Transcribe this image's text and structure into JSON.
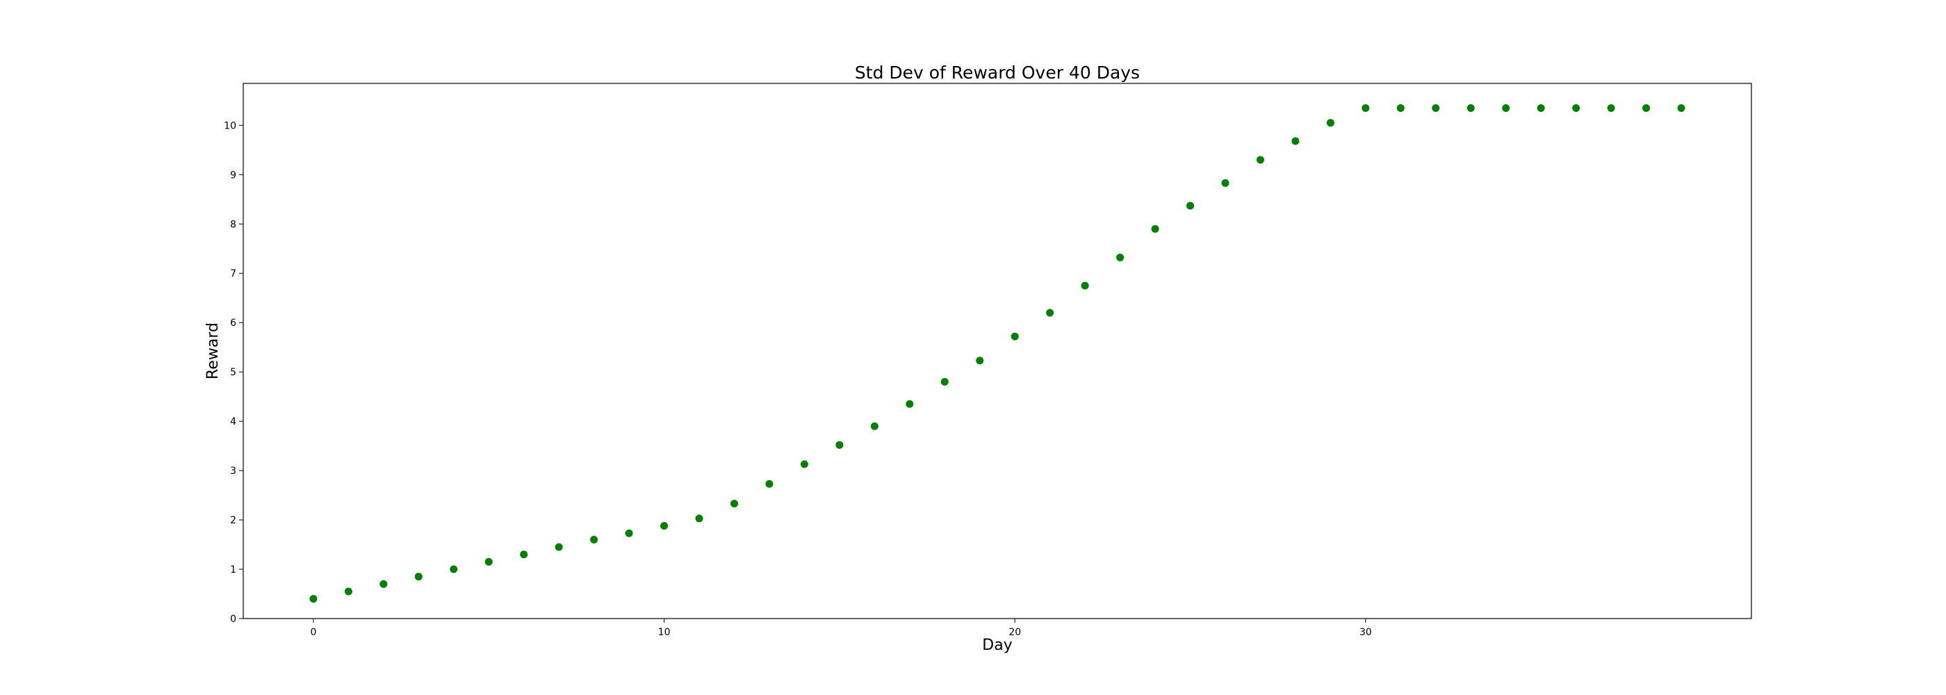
{
  "chart_data": {
    "type": "scatter",
    "title": "Std Dev of Reward Over 40 Days",
    "xlabel": "Day",
    "ylabel": "Reward",
    "xlim": [
      -2,
      41
    ],
    "ylim": [
      0,
      10.85
    ],
    "xticks": [
      0,
      10,
      20,
      30
    ],
    "yticks": [
      0,
      1,
      2,
      3,
      4,
      5,
      6,
      7,
      8,
      9,
      10
    ],
    "grid": false,
    "marker_color": "#008000",
    "series": [
      {
        "x": [
          0,
          1,
          2,
          3,
          4,
          5,
          6,
          7,
          8,
          9,
          10,
          11,
          12,
          13,
          14,
          15,
          16,
          17,
          18,
          19,
          20,
          21,
          22,
          23,
          24,
          25,
          26,
          27,
          28,
          29,
          30,
          31,
          32,
          33,
          34,
          35,
          36,
          37,
          38,
          39
        ],
        "y": [
          0.4,
          0.55,
          0.7,
          0.85,
          1.0,
          1.15,
          1.3,
          1.45,
          1.6,
          1.73,
          1.88,
          2.03,
          2.33,
          2.73,
          3.13,
          3.52,
          3.9,
          4.35,
          4.8,
          5.23,
          5.72,
          6.2,
          6.75,
          7.32,
          7.9,
          8.37,
          8.83,
          9.3,
          9.68,
          10.05,
          10.35,
          10.35,
          10.35,
          10.35,
          10.35,
          10.35,
          10.35,
          10.35,
          10.35,
          10.35
        ]
      }
    ]
  }
}
